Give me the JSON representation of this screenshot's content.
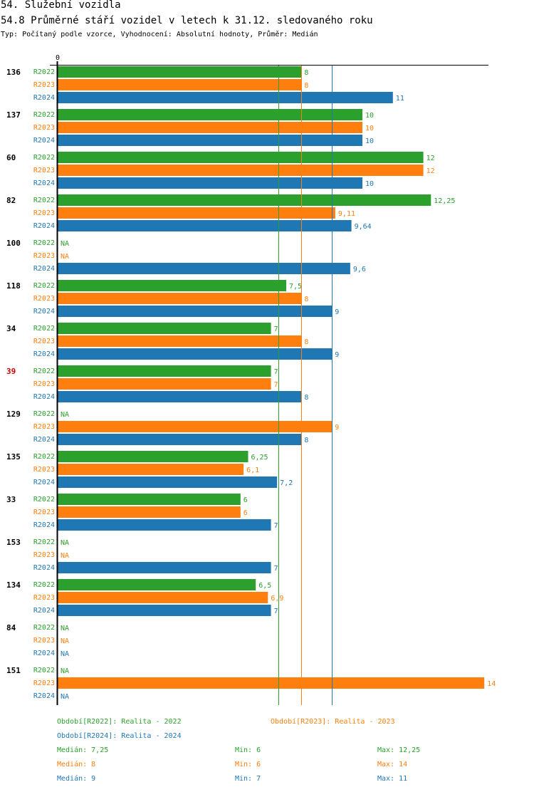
{
  "page": {
    "title": "54. Služební vozidla",
    "subtitle": "54.8 Průměrné stáří vozidel v letech k 31.12. sledovaného roku",
    "type_line": "Typ: Počítaný podle vzorce, Vyhodnocení: Absolutní hodnoty, Průměr: Medián"
  },
  "colors": {
    "R2022": "#2ca02c",
    "R2023": "#ff7f0e",
    "R2024": "#1f77b4",
    "highlight": "#cc0000"
  },
  "chart_data": {
    "type": "bar",
    "orientation": "horizontal",
    "axis_zero_label": "0",
    "na_label": "NA",
    "xlim": [
      0,
      14
    ],
    "series_names": [
      "R2022",
      "R2023",
      "R2024"
    ],
    "groups": [
      {
        "id": "136",
        "highlight": false,
        "values": [
          8,
          8,
          11
        ],
        "labels": [
          "8",
          "8",
          "11"
        ]
      },
      {
        "id": "137",
        "highlight": false,
        "values": [
          10,
          10,
          10
        ],
        "labels": [
          "10",
          "10",
          "10"
        ]
      },
      {
        "id": "60",
        "highlight": false,
        "values": [
          12,
          12,
          10
        ],
        "labels": [
          "12",
          "12",
          "10"
        ]
      },
      {
        "id": "82",
        "highlight": false,
        "values": [
          12.25,
          9.11,
          9.64
        ],
        "labels": [
          "12,25",
          "9,11",
          "9,64"
        ]
      },
      {
        "id": "100",
        "highlight": false,
        "values": [
          null,
          null,
          9.6
        ],
        "labels": [
          "NA",
          "NA",
          "9,6"
        ]
      },
      {
        "id": "118",
        "highlight": false,
        "values": [
          7.5,
          8,
          9
        ],
        "labels": [
          "7,5",
          "8",
          "9"
        ]
      },
      {
        "id": "34",
        "highlight": false,
        "values": [
          7,
          8,
          9
        ],
        "labels": [
          "7",
          "8",
          "9"
        ]
      },
      {
        "id": "39",
        "highlight": true,
        "values": [
          7,
          7,
          8
        ],
        "labels": [
          "7",
          "7",
          "8"
        ]
      },
      {
        "id": "129",
        "highlight": false,
        "values": [
          null,
          9,
          8
        ],
        "labels": [
          "NA",
          "9",
          "8"
        ]
      },
      {
        "id": "135",
        "highlight": false,
        "values": [
          6.25,
          6.1,
          7.2
        ],
        "labels": [
          "6,25",
          "6,1",
          "7,2"
        ]
      },
      {
        "id": "33",
        "highlight": false,
        "values": [
          6,
          6,
          7
        ],
        "labels": [
          "6",
          "6",
          "7"
        ]
      },
      {
        "id": "153",
        "highlight": false,
        "values": [
          null,
          null,
          7
        ],
        "labels": [
          "NA",
          "NA",
          "7"
        ]
      },
      {
        "id": "134",
        "highlight": false,
        "values": [
          6.5,
          6.9,
          7
        ],
        "labels": [
          "6,5",
          "6,9",
          "7"
        ]
      },
      {
        "id": "84",
        "highlight": false,
        "values": [
          null,
          null,
          null
        ],
        "labels": [
          "NA",
          "NA",
          "NA"
        ]
      },
      {
        "id": "151",
        "highlight": false,
        "values": [
          null,
          14,
          null
        ],
        "labels": [
          "NA",
          "14",
          "NA"
        ]
      }
    ],
    "reference_lines": [
      {
        "series": "R2022",
        "value": 7.25
      },
      {
        "series": "R2023",
        "value": 8
      },
      {
        "series": "R2024",
        "value": 9
      }
    ]
  },
  "legend": {
    "periods": [
      {
        "series": "R2022",
        "text": "Období[R2022]: Realita - 2022"
      },
      {
        "series": "R2023",
        "text": "Období[R2023]: Realita - 2023"
      },
      {
        "series": "R2024",
        "text": "Období[R2024]: Realita - 2024"
      }
    ],
    "stats": [
      {
        "series": "R2022",
        "median": "Medián: 7,25",
        "min": "Min: 6",
        "max": "Max: 12,25"
      },
      {
        "series": "R2023",
        "median": "Medián: 8",
        "min": "Min: 6",
        "max": "Max: 14"
      },
      {
        "series": "R2024",
        "median": "Medián: 9",
        "min": "Min: 7",
        "max": "Max: 11"
      }
    ]
  }
}
